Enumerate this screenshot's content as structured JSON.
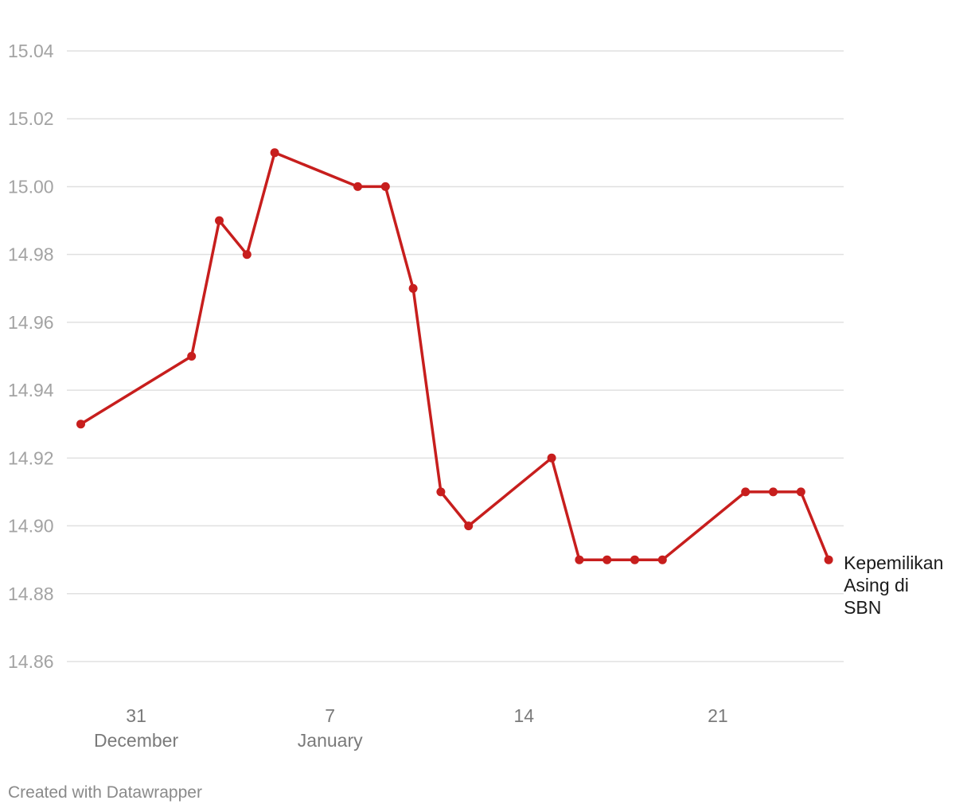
{
  "chart_data": {
    "type": "line",
    "title": "",
    "xlabel": "",
    "ylabel": "",
    "ylim": [
      14.86,
      15.04
    ],
    "yticks": [
      "15.04",
      "15.02",
      "15.00",
      "14.98",
      "14.96",
      "14.94",
      "14.92",
      "14.90",
      "14.88",
      "14.86"
    ],
    "grid": true,
    "xticks": [
      {
        "day": "31",
        "month": "December",
        "date": "2018-12-31"
      },
      {
        "day": "7",
        "month": "January",
        "date": "2019-01-07"
      },
      {
        "day": "14",
        "month": "",
        "date": "2019-01-14"
      },
      {
        "day": "21",
        "month": "",
        "date": "2019-01-21"
      }
    ],
    "series": [
      {
        "name": "Kepemilikan Asing di SBN",
        "label_lines": [
          "Kepemilikan",
          "Asing di",
          "SBN"
        ],
        "color": "#c71e1d",
        "points": [
          {
            "x": "2018-12-29",
            "y": 14.93
          },
          {
            "x": "2019-01-02",
            "y": 14.95
          },
          {
            "x": "2019-01-03",
            "y": 14.99
          },
          {
            "x": "2019-01-04",
            "y": 14.98
          },
          {
            "x": "2019-01-05",
            "y": 15.01
          },
          {
            "x": "2019-01-08",
            "y": 15.0
          },
          {
            "x": "2019-01-09",
            "y": 15.0
          },
          {
            "x": "2019-01-10",
            "y": 14.97
          },
          {
            "x": "2019-01-11",
            "y": 14.91
          },
          {
            "x": "2019-01-12",
            "y": 14.9
          },
          {
            "x": "2019-01-15",
            "y": 14.92
          },
          {
            "x": "2019-01-16",
            "y": 14.89
          },
          {
            "x": "2019-01-17",
            "y": 14.89
          },
          {
            "x": "2019-01-18",
            "y": 14.89
          },
          {
            "x": "2019-01-19",
            "y": 14.89
          },
          {
            "x": "2019-01-22",
            "y": 14.91
          },
          {
            "x": "2019-01-23",
            "y": 14.91
          },
          {
            "x": "2019-01-24",
            "y": 14.91
          },
          {
            "x": "2019-01-25",
            "y": 14.89
          }
        ]
      }
    ]
  },
  "credit": "Created with Datawrapper"
}
